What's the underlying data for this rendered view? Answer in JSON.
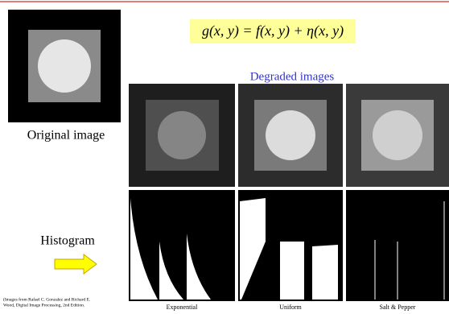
{
  "formula": "g(x, y) = f(x, y) + η(x, y)",
  "degraded_title": "Degraded images",
  "original_label": "Original image",
  "histogram_label": "Histogram",
  "citation": [
    "(Images from Rafael C. Gonzalez and Richard E.",
    "Wood, Digital Image Processing, 2nd Edition."
  ],
  "captions": [
    "Exponential",
    "Uniform",
    "Salt & Pepper"
  ]
}
